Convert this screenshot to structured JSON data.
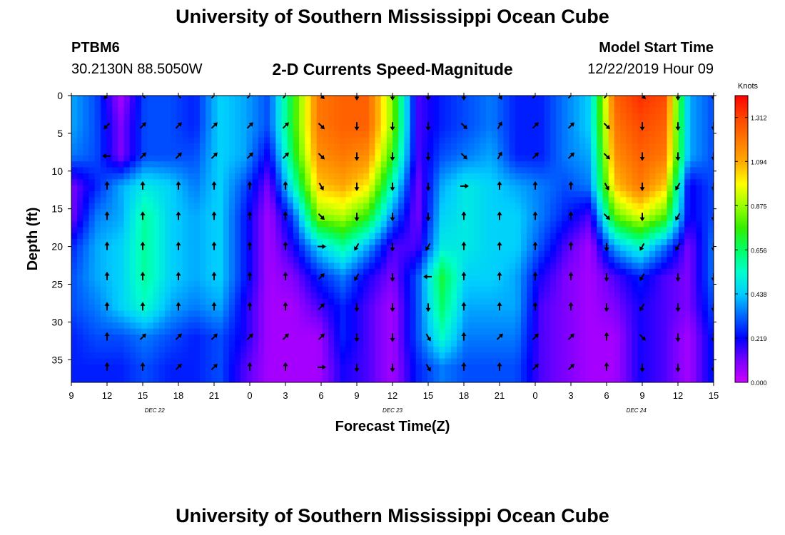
{
  "header": {
    "title": "University of Southern Mississippi Ocean Cube",
    "footer_title": "University of Southern Mississippi Ocean Cube",
    "station_id": "PTBM6",
    "station_coords": "30.2130N 88.5050W",
    "subtitle": "2-D Currents Speed-Magnitude",
    "model_start_label": "Model Start Time",
    "model_start_time": "12/22/2019 Hour 09"
  },
  "chart_data": {
    "type": "heatmap",
    "title": "2-D Currents Speed-Magnitude",
    "xlabel": "Forecast Time(Z)",
    "ylabel": "Depth (ft)",
    "x_tick_labels": [
      "9",
      "12",
      "15",
      "18",
      "21",
      "0",
      "3",
      "6",
      "9",
      "12",
      "15",
      "18",
      "21",
      "0",
      "3",
      "6",
      "9",
      "12",
      "15"
    ],
    "x_hours": [
      0,
      3,
      6,
      9,
      12,
      15,
      18,
      21,
      24,
      27,
      30,
      33,
      36,
      39,
      42,
      45,
      48,
      51,
      54
    ],
    "date_labels": [
      {
        "label": "DEC 22",
        "hour": 7
      },
      {
        "label": "DEC 23",
        "hour": 27
      },
      {
        "label": "DEC 24",
        "hour": 47.5
      }
    ],
    "y_ticks": [
      0,
      5,
      10,
      15,
      20,
      25,
      30,
      35
    ],
    "ylim": [
      0,
      38
    ],
    "y_inverted": true,
    "colorbar": {
      "label": "Knots",
      "ticks": [
        "0.000",
        "0.219",
        "0.438",
        "0.656",
        "0.875",
        "1.094",
        "1.312"
      ],
      "range": [
        0,
        1.42
      ],
      "colors": [
        "#cc00ff",
        "#7700ff",
        "#0000ff",
        "#0066ff",
        "#00ccff",
        "#00ffcc",
        "#00ff66",
        "#33ee00",
        "#99ff00",
        "#ffff00",
        "#ffaa00",
        "#ff7700",
        "#ff4400",
        "#ff0000"
      ]
    },
    "depths_ft": [
      0,
      4,
      8,
      12,
      16,
      20,
      24,
      28,
      32,
      36
    ],
    "vector_hours": [
      3,
      6,
      9,
      12,
      15,
      18,
      21,
      24,
      27,
      30,
      33,
      36,
      39,
      42,
      45,
      48,
      51,
      54
    ],
    "speed_grid": [
      [
        0.4,
        0.3,
        0.05,
        0.3,
        0.3,
        0.25,
        0.45,
        0.4,
        0.3,
        0.75,
        1.2,
        1.25,
        1.25,
        0.85,
        0.15,
        0.25,
        0.3,
        0.35,
        0.25,
        0.25,
        0.35,
        0.45,
        1.25,
        1.35,
        1.3,
        0.4,
        0.3
      ],
      [
        0.4,
        0.3,
        0.1,
        0.3,
        0.3,
        0.25,
        0.45,
        0.4,
        0.3,
        0.75,
        1.2,
        1.25,
        1.25,
        0.85,
        0.15,
        0.25,
        0.3,
        0.35,
        0.25,
        0.25,
        0.35,
        0.45,
        1.2,
        1.3,
        1.25,
        0.4,
        0.3
      ],
      [
        0.35,
        0.3,
        0.1,
        0.3,
        0.3,
        0.3,
        0.45,
        0.4,
        0.2,
        0.7,
        1.15,
        1.2,
        1.15,
        0.75,
        0.15,
        0.3,
        0.35,
        0.4,
        0.25,
        0.25,
        0.35,
        0.4,
        1.15,
        1.25,
        1.2,
        0.4,
        0.3
      ],
      [
        0.1,
        0.25,
        0.4,
        0.5,
        0.45,
        0.35,
        0.45,
        0.3,
        0.1,
        0.55,
        1.05,
        1.1,
        1.0,
        0.55,
        0.1,
        0.4,
        0.5,
        0.45,
        0.4,
        0.35,
        0.3,
        0.35,
        1.05,
        1.2,
        1.05,
        0.2,
        0.3
      ],
      [
        0.1,
        0.35,
        0.4,
        0.6,
        0.45,
        0.4,
        0.45,
        0.25,
        0.05,
        0.3,
        0.85,
        0.9,
        0.75,
        0.35,
        0.1,
        0.45,
        0.5,
        0.45,
        0.45,
        0.35,
        0.25,
        0.15,
        0.8,
        0.95,
        0.8,
        0.2,
        0.3
      ],
      [
        0.25,
        0.4,
        0.45,
        0.6,
        0.45,
        0.4,
        0.45,
        0.25,
        0.05,
        0.2,
        0.45,
        0.6,
        0.4,
        0.15,
        0.15,
        0.5,
        0.5,
        0.45,
        0.45,
        0.3,
        0.15,
        0.05,
        0.4,
        0.55,
        0.35,
        0.1,
        0.35
      ],
      [
        0.3,
        0.4,
        0.45,
        0.6,
        0.45,
        0.4,
        0.45,
        0.25,
        0.05,
        0.1,
        0.25,
        0.35,
        0.2,
        0.1,
        0.3,
        0.7,
        0.45,
        0.45,
        0.4,
        0.2,
        0.1,
        0.05,
        0.15,
        0.25,
        0.15,
        0.1,
        0.35
      ],
      [
        0.3,
        0.35,
        0.45,
        0.55,
        0.4,
        0.35,
        0.4,
        0.2,
        0.05,
        0.05,
        0.15,
        0.25,
        0.15,
        0.05,
        0.3,
        0.65,
        0.4,
        0.4,
        0.4,
        0.15,
        0.1,
        0.05,
        0.1,
        0.2,
        0.15,
        0.1,
        0.3
      ],
      [
        0.25,
        0.3,
        0.3,
        0.35,
        0.3,
        0.25,
        0.3,
        0.2,
        0.05,
        0.05,
        0.05,
        0.25,
        0.15,
        0.05,
        0.3,
        0.55,
        0.35,
        0.35,
        0.35,
        0.15,
        0.1,
        0.05,
        0.05,
        0.2,
        0.15,
        0.05,
        0.25
      ],
      [
        0.25,
        0.25,
        0.25,
        0.3,
        0.25,
        0.25,
        0.3,
        0.15,
        0.05,
        0.05,
        0.05,
        0.2,
        0.15,
        0.05,
        0.25,
        0.35,
        0.3,
        0.3,
        0.3,
        0.15,
        0.1,
        0.05,
        0.05,
        0.2,
        0.15,
        0.05,
        0.25
      ]
    ],
    "arrow_angles_deg": [
      [
        225,
        315,
        315,
        45,
        45,
        45,
        135,
        180,
        180,
        180,
        180,
        150,
        45,
        45,
        45,
        135,
        180,
        180
      ],
      [
        225,
        45,
        45,
        45,
        45,
        45,
        135,
        180,
        180,
        180,
        135,
        30,
        45,
        45,
        135,
        180,
        180,
        180
      ],
      [
        270,
        45,
        45,
        45,
        45,
        45,
        135,
        180,
        180,
        180,
        135,
        30,
        45,
        45,
        135,
        180,
        180,
        180
      ],
      [
        0,
        0,
        0,
        0,
        0,
        0,
        150,
        180,
        180,
        180,
        90,
        0,
        0,
        0,
        150,
        180,
        210,
        180
      ],
      [
        0,
        0,
        0,
        0,
        0,
        0,
        135,
        180,
        180,
        180,
        0,
        0,
        0,
        0,
        135,
        180,
        210,
        180
      ],
      [
        0,
        0,
        0,
        0,
        0,
        0,
        90,
        210,
        180,
        210,
        0,
        0,
        0,
        0,
        180,
        210,
        210,
        180
      ],
      [
        0,
        0,
        0,
        0,
        0,
        0,
        45,
        210,
        180,
        270,
        0,
        0,
        0,
        0,
        180,
        210,
        180,
        180
      ],
      [
        0,
        0,
        0,
        0,
        0,
        0,
        45,
        180,
        180,
        180,
        0,
        0,
        0,
        0,
        180,
        210,
        180,
        180
      ],
      [
        0,
        45,
        45,
        45,
        45,
        45,
        45,
        180,
        180,
        150,
        0,
        45,
        45,
        45,
        0,
        135,
        180,
        180
      ],
      [
        0,
        0,
        45,
        45,
        0,
        0,
        90,
        180,
        180,
        150,
        0,
        0,
        45,
        45,
        0,
        180,
        180,
        180
      ]
    ]
  }
}
